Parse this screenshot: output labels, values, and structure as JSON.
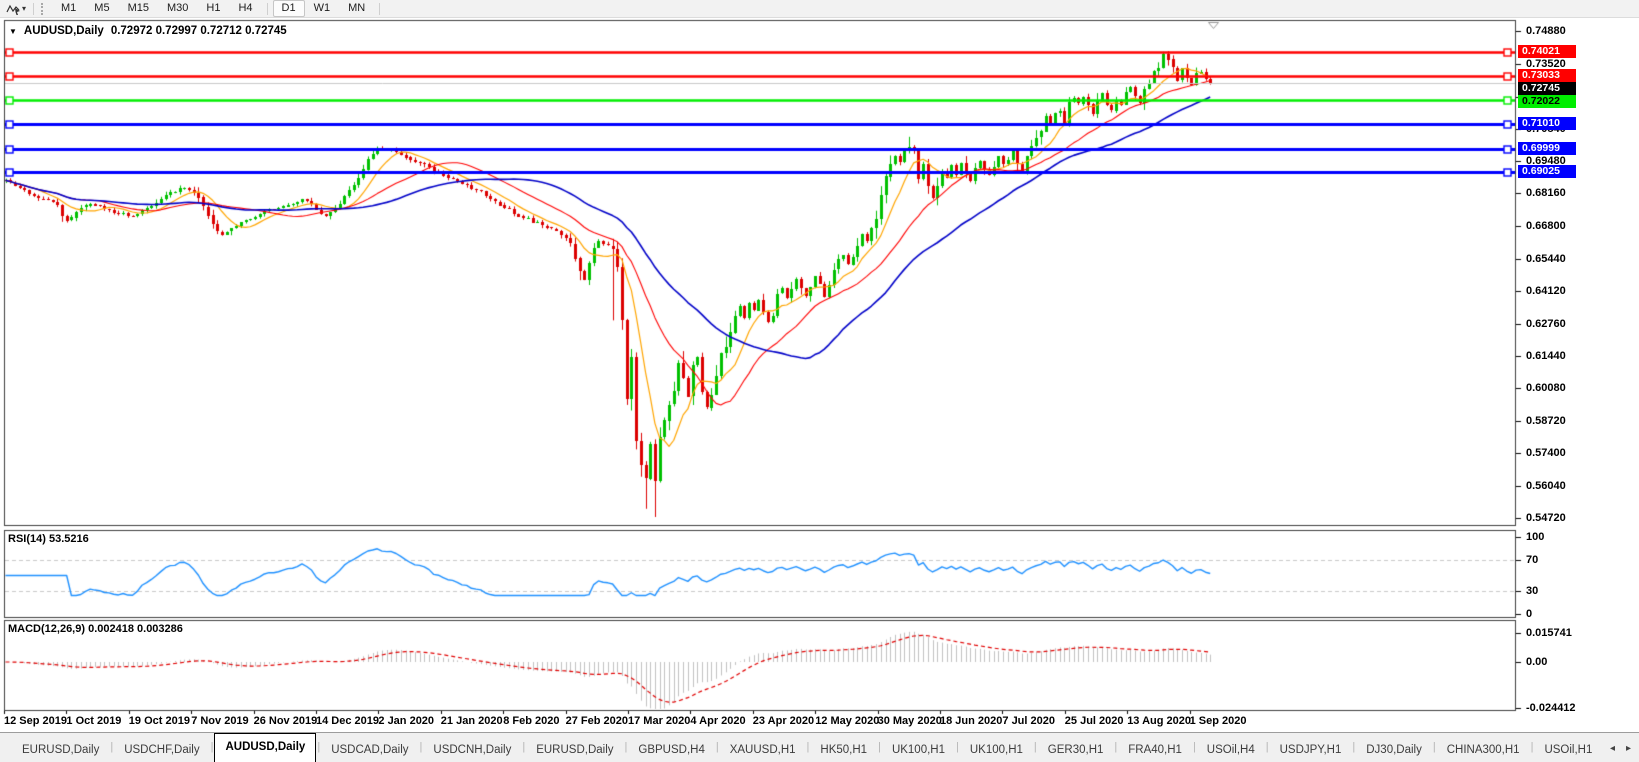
{
  "toolbar": {
    "timeframes": [
      "M1",
      "M5",
      "M15",
      "M30",
      "H1",
      "H4",
      "D1",
      "W1",
      "MN"
    ],
    "active_timeframe": "D1",
    "dropdown_caret": "▾"
  },
  "chart": {
    "title": "AUDUSD,Daily",
    "ohlc_text": "0.72972 0.72997 0.72712 0.72745",
    "dropdown_triangle": "▼",
    "y_axis_ticks": [
      "0.74880",
      "0.73520",
      "0.72160",
      "0.70840",
      "0.69480",
      "0.68160",
      "0.66800",
      "0.65440",
      "0.64120",
      "0.62760",
      "0.61440",
      "0.60080",
      "0.58720",
      "0.57400",
      "0.56040",
      "0.54720"
    ],
    "price_lines": [
      {
        "text": "0.74021",
        "value": 0.74021,
        "color": "#FF0000",
        "label_fg": "#FFFFFF",
        "width": 2.4
      },
      {
        "text": "0.73033",
        "value": 0.73033,
        "color": "#FF0000",
        "label_fg": "#FFFFFF",
        "width": 2.4
      },
      {
        "text": "0.72022",
        "value": 0.72022,
        "color": "#00EE00",
        "label_fg": "#000000",
        "width": 2.6
      },
      {
        "text": "0.71010",
        "value": 0.7101,
        "color": "#0000FF",
        "label_fg": "#FFFFFF",
        "width": 2.8
      },
      {
        "text": "0.69999",
        "value": 0.69999,
        "color": "#0000FF",
        "label_fg": "#FFFFFF",
        "width": 2.8
      },
      {
        "text": "0.69025",
        "value": 0.69025,
        "color": "#0000FF",
        "label_fg": "#FFFFFF",
        "width": 2.8
      }
    ],
    "current_price": {
      "text": "0.72745",
      "value": 0.72745,
      "bg": "#000000",
      "fg": "#FFFFFF",
      "line_color": "#C8C8C8"
    },
    "x_axis_labels": [
      "12 Sep 2019",
      "1 Oct 2019",
      "19 Oct 2019",
      "7 Nov 2019",
      "26 Nov 2019",
      "14 Dec 2019",
      "2 Jan 2020",
      "21 Jan 2020",
      "8 Feb 2020",
      "27 Feb 2020",
      "17 Mar 2020",
      "4 Apr 2020",
      "23 Apr 2020",
      "12 May 2020",
      "30 May 2020",
      "18 Jun 2020",
      "7 Jul 2020",
      "25 Jul 2020",
      "13 Aug 2020",
      "1 Sep 2020"
    ],
    "colors": {
      "up": "#00C000",
      "down": "#DC0000",
      "ma_fast": "#FFA500",
      "ma_mid": "#FF0000",
      "ma_slow": "#0000C8"
    }
  },
  "rsi": {
    "label": "RSI(14) 53.5216",
    "current_value": "53.5216",
    "period": 14,
    "levels": [
      "100",
      "70",
      "30",
      "0"
    ],
    "overbought": 70,
    "oversold": 30,
    "line_color": "#1E90FF",
    "level_line_color": "#C8C8C8"
  },
  "macd": {
    "label": "MACD(12,26,9) 0.002418 0.003286",
    "main_value": "0.002418",
    "signal_value": "0.003286",
    "axis_ticks": [
      "0.015741",
      "0.00",
      "-0.024412"
    ],
    "histogram_color": "#C0C0C0",
    "signal_color": "#E00000"
  },
  "tabs": {
    "items": [
      "EURUSD,Daily",
      "USDCHF,Daily",
      "AUDUSD,Daily",
      "USDCAD,Daily",
      "USDCNH,Daily",
      "EURUSD,Daily",
      "GBPUSD,H4",
      "XAUUSD,H1",
      "HK50,H1",
      "UK100,H1",
      "UK100,H1",
      "GER30,H1",
      "FRA40,H1",
      "USOil,H4",
      "USDJPY,H1",
      "DJ30,Daily",
      "CHINA300,H1",
      "USOil,H1"
    ],
    "active_tab": "AUDUSD,Daily",
    "nav": {
      "left": "◂",
      "right": "▸"
    }
  },
  "chart_data": {
    "type": "candlestick",
    "instrument": "AUDUSD",
    "timeframe": "Daily",
    "x_range": [
      "12 Sep 2019",
      "mid Sep 2020"
    ],
    "y_range": [
      0.5472,
      0.7488
    ],
    "num_candles": 257,
    "last_close": 0.72745,
    "horizontal_lines": [
      0.74021,
      0.73033,
      0.72022,
      0.7101,
      0.69999,
      0.69025
    ],
    "ma_periods": {
      "fast": 8,
      "mid": 21,
      "slow": 40
    },
    "rsi_period": 14,
    "macd_params": [
      12,
      26,
      9
    ],
    "close_keyframes": [
      [
        0,
        0.6865
      ],
      [
        3,
        0.6835
      ],
      [
        5,
        0.681
      ],
      [
        8,
        0.679
      ],
      [
        11,
        0.677
      ],
      [
        13,
        0.67
      ],
      [
        15,
        0.674
      ],
      [
        18,
        0.6775
      ],
      [
        22,
        0.6745
      ],
      [
        27,
        0.672
      ],
      [
        31,
        0.677
      ],
      [
        35,
        0.6815
      ],
      [
        38,
        0.684
      ],
      [
        41,
        0.68
      ],
      [
        44,
        0.668
      ],
      [
        46,
        0.6645
      ],
      [
        50,
        0.67
      ],
      [
        55,
        0.674
      ],
      [
        60,
        0.6765
      ],
      [
        63,
        0.679
      ],
      [
        66,
        0.6755
      ],
      [
        68,
        0.672
      ],
      [
        72,
        0.68
      ],
      [
        75,
        0.687
      ],
      [
        77,
        0.695
      ],
      [
        79,
        0.7
      ],
      [
        82,
        0.699
      ],
      [
        85,
        0.6965
      ],
      [
        88,
        0.694
      ],
      [
        92,
        0.69
      ],
      [
        96,
        0.6865
      ],
      [
        100,
        0.683
      ],
      [
        104,
        0.678
      ],
      [
        108,
        0.6735
      ],
      [
        112,
        0.67
      ],
      [
        117,
        0.6655
      ],
      [
        120,
        0.661
      ],
      [
        122,
        0.651
      ],
      [
        123,
        0.6455
      ],
      [
        124,
        0.652
      ],
      [
        125,
        0.6585
      ],
      [
        126,
        0.6625
      ],
      [
        127,
        0.6605
      ],
      [
        129,
        0.6585
      ],
      [
        130,
        0.6505
      ],
      [
        131,
        0.63
      ],
      [
        132,
        0.595
      ],
      [
        133,
        0.612
      ],
      [
        134,
        0.58
      ],
      [
        135,
        0.57
      ],
      [
        136,
        0.565
      ],
      [
        137,
        0.578
      ],
      [
        138,
        0.5625
      ],
      [
        139,
        0.582
      ],
      [
        140,
        0.588
      ],
      [
        142,
        0.6
      ],
      [
        143,
        0.612
      ],
      [
        144,
        0.605
      ],
      [
        145,
        0.597
      ],
      [
        146,
        0.608
      ],
      [
        147,
        0.613
      ],
      [
        148,
        0.6
      ],
      [
        149,
        0.593
      ],
      [
        150,
        0.599
      ],
      [
        151,
        0.604
      ],
      [
        152,
        0.613
      ],
      [
        153,
        0.618
      ],
      [
        154,
        0.626
      ],
      [
        155,
        0.631
      ],
      [
        156,
        0.635
      ],
      [
        157,
        0.63
      ],
      [
        158,
        0.6365
      ],
      [
        159,
        0.633
      ],
      [
        160,
        0.637
      ],
      [
        161,
        0.632
      ],
      [
        162,
        0.628
      ],
      [
        163,
        0.633
      ],
      [
        164,
        0.639
      ],
      [
        165,
        0.642
      ],
      [
        166,
        0.638
      ],
      [
        167,
        0.642
      ],
      [
        168,
        0.646
      ],
      [
        169,
        0.643
      ],
      [
        170,
        0.639
      ],
      [
        171,
        0.644
      ],
      [
        172,
        0.647
      ],
      [
        173,
        0.643
      ],
      [
        174,
        0.639
      ],
      [
        175,
        0.645
      ],
      [
        176,
        0.649
      ],
      [
        177,
        0.653
      ],
      [
        178,
        0.656
      ],
      [
        179,
        0.652
      ],
      [
        180,
        0.655
      ],
      [
        181,
        0.66
      ],
      [
        182,
        0.665
      ],
      [
        183,
        0.662
      ],
      [
        184,
        0.666
      ],
      [
        185,
        0.672
      ],
      [
        186,
        0.679
      ],
      [
        187,
        0.687
      ],
      [
        188,
        0.693
      ],
      [
        189,
        0.697
      ],
      [
        190,
        0.694
      ],
      [
        191,
        0.7
      ],
      [
        192,
        0.701
      ],
      [
        193,
        0.698
      ],
      [
        194,
        0.688
      ],
      [
        195,
        0.693
      ],
      [
        196,
        0.685
      ],
      [
        197,
        0.68
      ],
      [
        198,
        0.686
      ],
      [
        199,
        0.691
      ],
      [
        200,
        0.688
      ],
      [
        201,
        0.693
      ],
      [
        202,
        0.689
      ],
      [
        203,
        0.694
      ],
      [
        204,
        0.69
      ],
      [
        205,
        0.687
      ],
      [
        206,
        0.691
      ],
      [
        207,
        0.695
      ],
      [
        208,
        0.692
      ],
      [
        209,
        0.689
      ],
      [
        210,
        0.694
      ],
      [
        211,
        0.697
      ],
      [
        212,
        0.693
      ],
      [
        213,
        0.695
      ],
      [
        214,
        0.699
      ],
      [
        215,
        0.6945
      ],
      [
        216,
        0.6905
      ],
      [
        217,
        0.696
      ],
      [
        218,
        0.7
      ],
      [
        219,
        0.704
      ],
      [
        220,
        0.709
      ],
      [
        221,
        0.714
      ],
      [
        222,
        0.71
      ],
      [
        223,
        0.716
      ],
      [
        224,
        0.7155
      ],
      [
        225,
        0.711
      ],
      [
        226,
        0.718
      ],
      [
        227,
        0.721
      ],
      [
        228,
        0.719
      ],
      [
        229,
        0.722
      ],
      [
        230,
        0.7185
      ],
      [
        231,
        0.715
      ],
      [
        232,
        0.72
      ],
      [
        233,
        0.723
      ],
      [
        234,
        0.719
      ],
      [
        235,
        0.716
      ],
      [
        236,
        0.721
      ],
      [
        237,
        0.718
      ],
      [
        238,
        0.723
      ],
      [
        239,
        0.726
      ],
      [
        240,
        0.723
      ],
      [
        241,
        0.719
      ],
      [
        242,
        0.724
      ],
      [
        243,
        0.728
      ],
      [
        244,
        0.731
      ],
      [
        245,
        0.735
      ],
      [
        246,
        0.739
      ],
      [
        247,
        0.737
      ],
      [
        248,
        0.732
      ],
      [
        249,
        0.728
      ],
      [
        250,
        0.733
      ],
      [
        251,
        0.729
      ],
      [
        252,
        0.726
      ],
      [
        253,
        0.73
      ],
      [
        254,
        0.732
      ],
      [
        255,
        0.729
      ],
      [
        256,
        0.72745
      ]
    ],
    "special_wicks": [
      {
        "i": 129,
        "low": 0.629
      },
      {
        "i": 131,
        "low": 0.6251
      },
      {
        "i": 136,
        "low": 0.551
      },
      {
        "i": 138,
        "low": 0.5476
      },
      {
        "i": 192,
        "high": 0.705
      },
      {
        "i": 246,
        "high": 0.74021
      },
      {
        "i": 247,
        "high": 0.7392
      }
    ]
  }
}
